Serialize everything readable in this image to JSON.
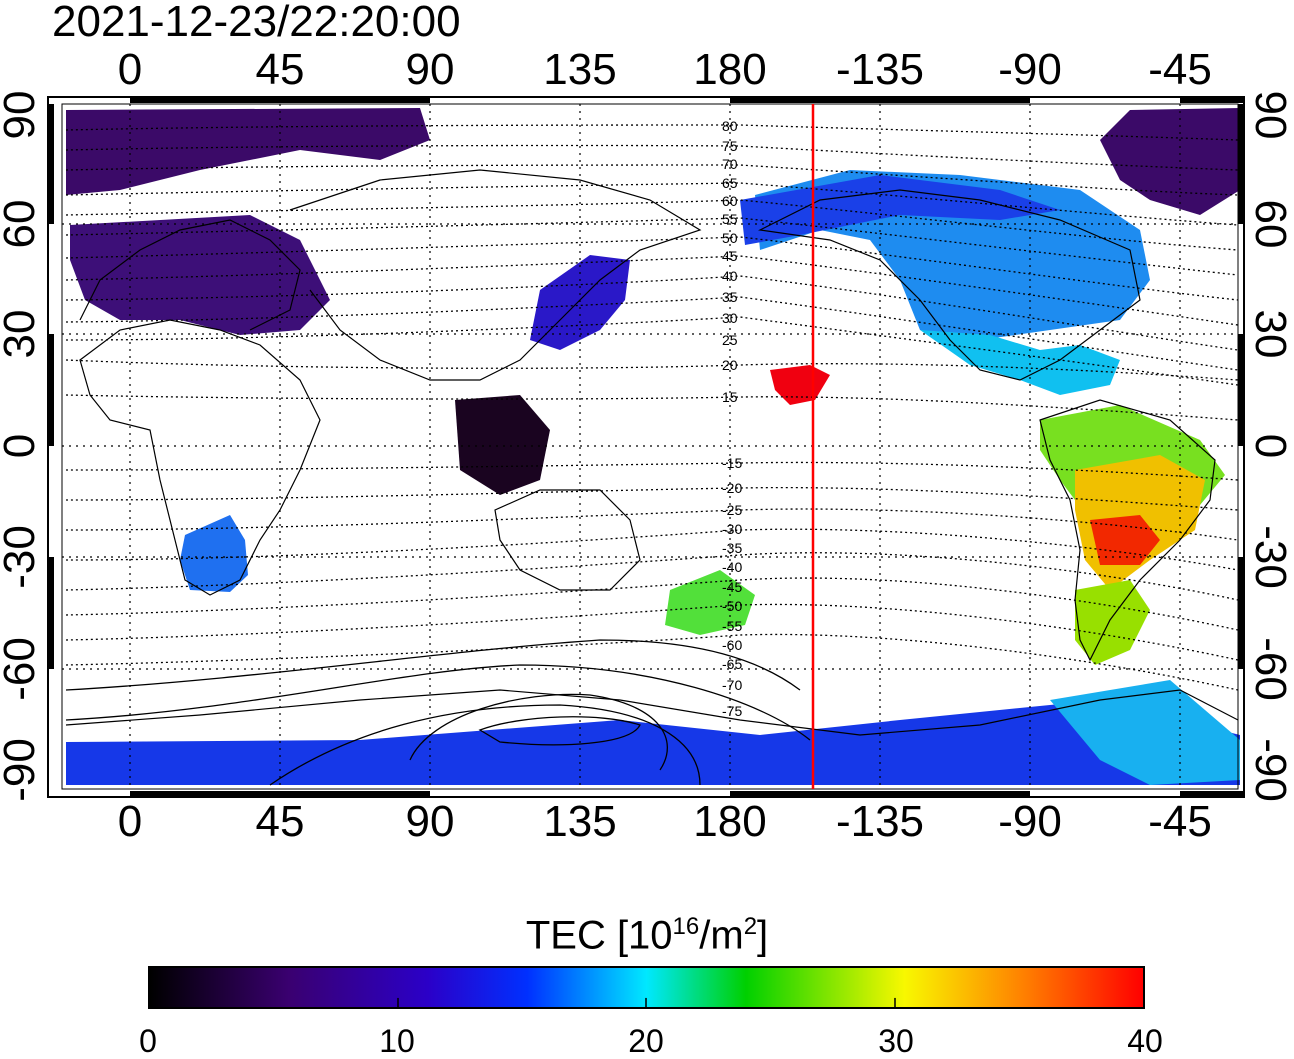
{
  "timestamp": "2021-12-23/22:20:00",
  "longitude_labels": [
    "0",
    "45",
    "90",
    "135",
    "180",
    "-135",
    "-90",
    "-45"
  ],
  "latitude_labels": [
    "90",
    "60",
    "30",
    "0",
    "-30",
    "-60",
    "-90"
  ],
  "contour_labels": [
    "80",
    "75",
    "70",
    "65",
    "60",
    "55",
    "50",
    "45",
    "40",
    "35",
    "30",
    "25",
    "20",
    "15",
    "-15",
    "-20",
    "-25",
    "-30",
    "-35",
    "-40",
    "-45",
    "-50",
    "-55",
    "-60",
    "-65",
    "-70",
    "-75"
  ],
  "colorbar": {
    "title_prefix": "TEC  [10",
    "title_exp": "16",
    "title_unit": "/m",
    "title_unit_exp": "2",
    "title_suffix": "]",
    "min": 0,
    "max": 40,
    "ticks": [
      "0",
      "10",
      "20",
      "30",
      "40"
    ],
    "colors": [
      "#000000",
      "#3a0070",
      "#0018ff",
      "#00e8ff",
      "#00d000",
      "#f8f800",
      "#ff8000",
      "#ff0000"
    ]
  },
  "terminator_color": "#ff0000",
  "terminator_longitude": -154
}
